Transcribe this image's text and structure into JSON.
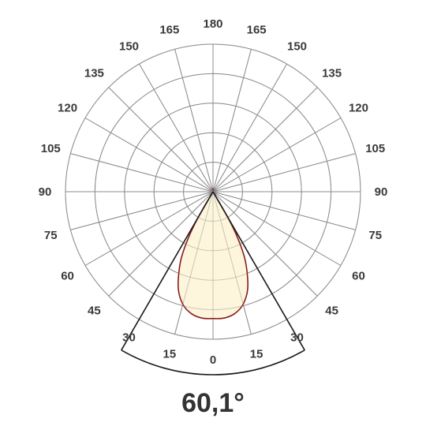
{
  "chart_data": {
    "type": "polar",
    "angle_unit": "degrees",
    "rings": 5,
    "spoke_step_deg": 15,
    "angle_tick_labels": [
      {
        "angle": 180,
        "label": "180"
      },
      {
        "angle": 165,
        "label": "165"
      },
      {
        "angle": -165,
        "label": "165"
      },
      {
        "angle": 150,
        "label": "150"
      },
      {
        "angle": -150,
        "label": "150"
      },
      {
        "angle": 135,
        "label": "135"
      },
      {
        "angle": -135,
        "label": "135"
      },
      {
        "angle": 120,
        "label": "120"
      },
      {
        "angle": -120,
        "label": "120"
      },
      {
        "angle": 105,
        "label": "105"
      },
      {
        "angle": -105,
        "label": "105"
      },
      {
        "angle": 90,
        "label": "90"
      },
      {
        "angle": -90,
        "label": "90"
      },
      {
        "angle": 75,
        "label": "75"
      },
      {
        "angle": -75,
        "label": "75"
      },
      {
        "angle": 60,
        "label": "60"
      },
      {
        "angle": -60,
        "label": "60"
      },
      {
        "angle": 45,
        "label": "45"
      },
      {
        "angle": -45,
        "label": "45"
      },
      {
        "angle": 30,
        "label": "30"
      },
      {
        "angle": -30,
        "label": "30"
      },
      {
        "angle": 15,
        "label": "15"
      },
      {
        "angle": -15,
        "label": "15"
      },
      {
        "angle": 0,
        "label": "0"
      }
    ],
    "series": [
      {
        "points": [
          {
            "angle": 0,
            "r": 0.86
          },
          {
            "angle": 5,
            "r": 0.86
          },
          {
            "angle": 10,
            "r": 0.84
          },
          {
            "angle": 15,
            "r": 0.79
          },
          {
            "angle": 20,
            "r": 0.69
          },
          {
            "angle": 25,
            "r": 0.52
          },
          {
            "angle": 28,
            "r": 0.36
          },
          {
            "angle": 30,
            "r": 0.2
          },
          {
            "angle": 30,
            "r": 0.0
          },
          {
            "angle": -30,
            "r": 0.0
          },
          {
            "angle": -30,
            "r": 0.2
          },
          {
            "angle": -28,
            "r": 0.36
          },
          {
            "angle": -25,
            "r": 0.52
          },
          {
            "angle": -20,
            "r": 0.69
          },
          {
            "angle": -15,
            "r": 0.79
          },
          {
            "angle": -10,
            "r": 0.84
          },
          {
            "angle": -5,
            "r": 0.86
          }
        ],
        "line_color": "#8b1a1a",
        "fill_color": "#fdf5d6"
      }
    ],
    "beam_angle": 60.1,
    "beam_angle_label": "60,1°",
    "grid": true,
    "grid_color": "#8c8c8c"
  }
}
